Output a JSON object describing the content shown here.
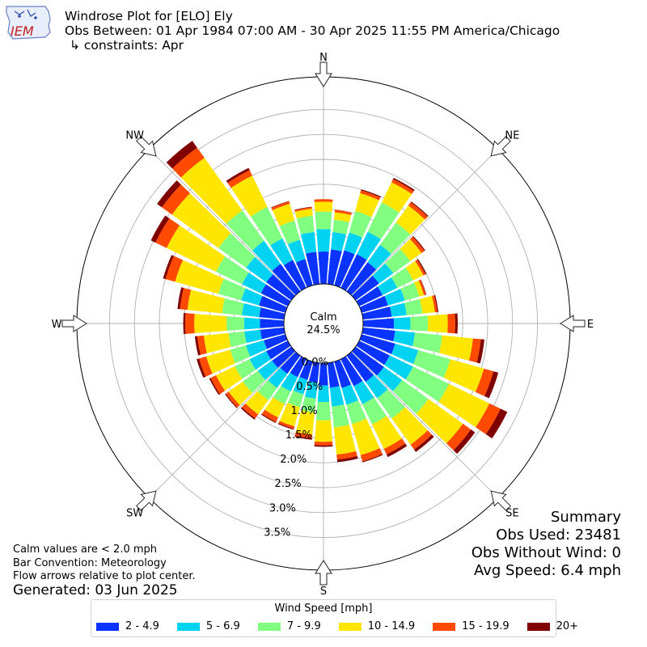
{
  "header": {
    "title": "Windrose Plot for [ELO] Ely",
    "subtitle": "Obs Between: 01 Apr 1984 07:00 AM - 30 Apr 2025 11:55 PM America/Chicago",
    "constraints": "↳ constraints: Apr",
    "logo_text": "IEM"
  },
  "notes": {
    "calm_note": "Calm values are < 2.0 mph",
    "bar_convention": "Bar Convention: Meteorology",
    "flow_arrows": "Flow arrows relative to plot center.",
    "generated": "Generated: 03 Jun 2025"
  },
  "summary": {
    "title": "Summary",
    "obs_used": "Obs Used: 23481",
    "obs_without_wind": "Obs Without Wind: 0",
    "avg_speed": "Avg Speed: 6.4 mph"
  },
  "chart_data": {
    "type": "windrose",
    "calm_label": "Calm",
    "calm_value": "24.5%",
    "directions": [
      "N",
      "NE",
      "E",
      "SE",
      "S",
      "SW",
      "W",
      "NW"
    ],
    "radial_ticks": [
      0.0,
      0.5,
      1.0,
      1.5,
      2.0,
      2.5,
      3.0,
      3.5
    ],
    "radial_tick_labels": [
      "0.0%",
      "0.5%",
      "1.0%",
      "1.5%",
      "2.0%",
      "2.5%",
      "3.0%",
      "3.5%"
    ],
    "bins_deg": [
      0,
      10,
      20,
      30,
      40,
      50,
      60,
      70,
      80,
      90,
      100,
      110,
      120,
      130,
      140,
      150,
      160,
      170,
      180,
      190,
      200,
      210,
      220,
      230,
      240,
      250,
      260,
      270,
      280,
      290,
      300,
      310,
      320,
      330,
      340,
      350
    ],
    "legend_title": "Wind Speed [mph]",
    "speed_bins": [
      {
        "label": "2 - 4.9",
        "color": "#0a33ff"
      },
      {
        "label": "5 - 6.9",
        "color": "#00d2f2"
      },
      {
        "label": "7 - 9.9",
        "color": "#80ff80"
      },
      {
        "label": "10 - 14.9",
        "color": "#ffe600"
      },
      {
        "label": "15 - 19.9",
        "color": "#ff4a00"
      },
      {
        "label": "20+",
        "color": "#800000"
      }
    ],
    "cumulative_pct": [
      [
        0.65,
        1.1,
        1.45,
        1.65,
        1.7,
        1.7
      ],
      [
        0.7,
        1.05,
        1.3,
        1.45,
        1.5,
        1.5
      ],
      [
        0.73,
        1.1,
        1.55,
        1.92,
        1.98,
        2.0
      ],
      [
        0.75,
        1.25,
        1.9,
        2.35,
        2.42,
        2.45
      ],
      [
        0.72,
        1.15,
        1.7,
        2.12,
        2.2,
        2.22
      ],
      [
        0.58,
        0.93,
        1.35,
        1.63,
        1.7,
        1.72
      ],
      [
        0.52,
        0.85,
        1.2,
        1.43,
        1.48,
        1.5
      ],
      [
        0.55,
        0.9,
        1.2,
        1.3,
        1.34,
        1.35
      ],
      [
        0.58,
        0.88,
        1.2,
        1.45,
        1.5,
        1.52
      ],
      [
        0.62,
        0.95,
        1.3,
        1.7,
        1.85,
        1.9
      ],
      [
        0.65,
        1.05,
        1.6,
        2.22,
        2.38,
        2.45
      ],
      [
        0.7,
        1.18,
        1.85,
        2.55,
        2.75,
        2.85
      ],
      [
        0.68,
        1.2,
        2.0,
        2.9,
        3.15,
        3.3
      ],
      [
        0.7,
        1.15,
        1.8,
        2.65,
        2.85,
        2.95
      ],
      [
        0.65,
        1.05,
        1.55,
        2.2,
        2.32,
        2.38
      ],
      [
        0.6,
        1.0,
        1.45,
        2.0,
        2.12,
        2.18
      ],
      [
        0.55,
        0.9,
        1.3,
        1.95,
        2.08,
        2.1
      ],
      [
        0.5,
        0.88,
        1.3,
        1.85,
        1.95,
        2.0
      ],
      [
        0.45,
        0.78,
        1.15,
        1.58,
        1.65,
        1.68
      ],
      [
        0.4,
        0.72,
        1.0,
        1.45,
        1.52,
        1.55
      ],
      [
        0.38,
        0.68,
        0.95,
        1.35,
        1.4,
        1.42
      ],
      [
        0.4,
        0.72,
        1.0,
        1.3,
        1.4,
        1.42
      ],
      [
        0.45,
        0.8,
        1.1,
        1.45,
        1.55,
        1.58
      ],
      [
        0.48,
        0.83,
        1.2,
        1.55,
        1.62,
        1.64
      ],
      [
        0.48,
        0.85,
        1.18,
        1.6,
        1.72,
        1.75
      ],
      [
        0.45,
        0.82,
        1.15,
        1.65,
        1.8,
        1.85
      ],
      [
        0.48,
        0.8,
        1.12,
        1.62,
        1.75,
        1.8
      ],
      [
        0.48,
        0.8,
        1.15,
        1.8,
        1.98,
        2.02
      ],
      [
        0.5,
        0.85,
        1.25,
        1.95,
        2.1,
        2.15
      ],
      [
        0.55,
        0.92,
        1.4,
        2.3,
        2.5,
        2.55
      ],
      [
        0.6,
        1.02,
        1.6,
        2.7,
        2.95,
        3.05
      ],
      [
        0.62,
        1.12,
        1.8,
        2.95,
        3.2,
        3.32
      ],
      [
        0.68,
        1.25,
        2.0,
        3.3,
        3.55,
        3.72
      ],
      [
        0.62,
        1.1,
        1.8,
        2.5,
        2.62,
        2.67
      ],
      [
        0.55,
        0.95,
        1.35,
        1.7,
        1.75,
        1.76
      ],
      [
        0.65,
        1.05,
        1.38,
        1.52,
        1.55,
        1.56
      ]
    ]
  }
}
